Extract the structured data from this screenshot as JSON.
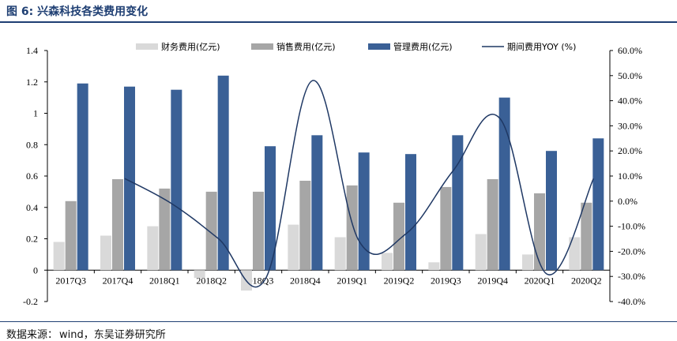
{
  "header": {
    "title": "图 6:  兴森科技各类费用变化"
  },
  "footer": {
    "source_label": "数据来源：",
    "source_text": "wind，东吴证券研究所"
  },
  "colors": {
    "finance": "#d9d9d9",
    "sales": "#a6a6a6",
    "mgmt": "#3a6096",
    "yoy_line": "#1f3864",
    "title": "#1f3f73"
  },
  "chart_data": {
    "type": "bar",
    "categories": [
      "2017Q3",
      "2017Q4",
      "2018Q1",
      "2018Q2",
      "2018Q3",
      "2018Q4",
      "2019Q1",
      "2019Q2",
      "2019Q3",
      "2019Q4",
      "2020Q1",
      "2020Q2"
    ],
    "series": [
      {
        "name": "财务费用(亿元)",
        "type": "bar",
        "axis": "left",
        "values": [
          0.18,
          0.22,
          0.28,
          -0.05,
          -0.13,
          0.29,
          0.21,
          0.11,
          0.05,
          0.23,
          0.1,
          0.21
        ]
      },
      {
        "name": "销售费用(亿元)",
        "type": "bar",
        "axis": "left",
        "values": [
          0.44,
          0.58,
          0.52,
          0.5,
          0.5,
          0.57,
          0.54,
          0.43,
          0.53,
          0.58,
          0.49,
          0.43
        ]
      },
      {
        "name": "管理费用(亿元)",
        "type": "bar",
        "axis": "left",
        "values": [
          1.19,
          1.17,
          1.15,
          1.24,
          0.79,
          0.86,
          0.75,
          0.74,
          0.86,
          1.1,
          0.76,
          0.84
        ]
      },
      {
        "name": "期间费用YOY (%)",
        "type": "line",
        "axis": "right",
        "values": [
          null,
          9.0,
          -1.0,
          -15.0,
          -31.0,
          48.0,
          -16.0,
          -13.0,
          12.0,
          33.0,
          -29.0,
          9.0
        ]
      }
    ],
    "ylim_left": [
      -0.2,
      1.4
    ],
    "yticks_left": [
      "-0.2",
      "0",
      "0.2",
      "0.4",
      "0.6",
      "0.8",
      "1",
      "1.2",
      "1.4"
    ],
    "ylim_right": [
      -40,
      60
    ],
    "yticks_right": [
      "-40.0%",
      "-30.0%",
      "-20.0%",
      "-10.0%",
      "0.0%",
      "10.0%",
      "20.0%",
      "30.0%",
      "40.0%",
      "50.0%",
      "60.0%"
    ],
    "legend_position": "top",
    "grid": false
  }
}
